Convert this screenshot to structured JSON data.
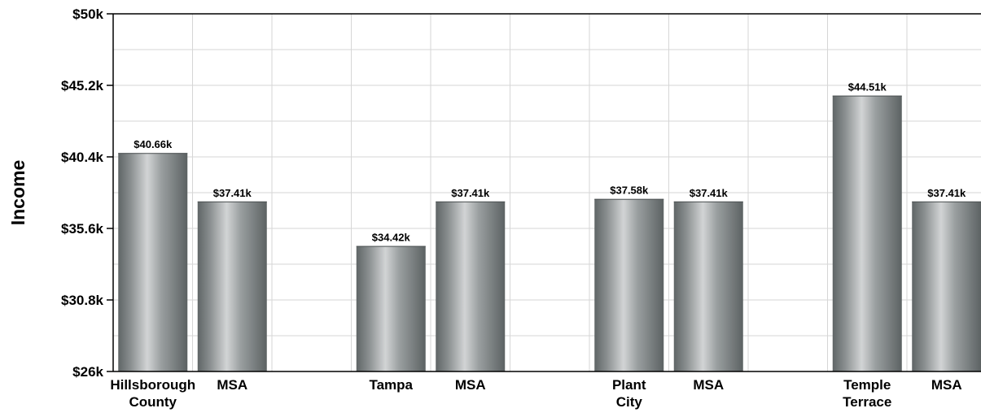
{
  "chart_data": {
    "type": "bar",
    "ylabel": "Income",
    "ylim": [
      26000,
      50000
    ],
    "yticks": [
      {
        "value": 50000,
        "label": "$50k"
      },
      {
        "value": 45200,
        "label": "$45.2k"
      },
      {
        "value": 40400,
        "label": "$40.4k"
      },
      {
        "value": 35600,
        "label": "$35.6k"
      },
      {
        "value": 30800,
        "label": "$30.8k"
      },
      {
        "value": 26000,
        "label": "$26k"
      }
    ],
    "grid": true,
    "groups": [
      {
        "bars": [
          {
            "category": [
              "Hillsborough",
              "County"
            ],
            "value": 40660,
            "label": "$40.66k"
          },
          {
            "category": [
              "MSA"
            ],
            "value": 37410,
            "label": "$37.41k"
          }
        ]
      },
      {
        "bars": [
          {
            "category": [
              "Tampa"
            ],
            "value": 34420,
            "label": "$34.42k"
          },
          {
            "category": [
              "MSA"
            ],
            "value": 37410,
            "label": "$37.41k"
          }
        ]
      },
      {
        "bars": [
          {
            "category": [
              "Plant",
              "City"
            ],
            "value": 37580,
            "label": "$37.58k"
          },
          {
            "category": [
              "MSA"
            ],
            "value": 37410,
            "label": "$37.41k"
          }
        ]
      },
      {
        "bars": [
          {
            "category": [
              "Temple",
              "Terrace"
            ],
            "value": 44510,
            "label": "$44.51k"
          },
          {
            "category": [
              "MSA"
            ],
            "value": 37410,
            "label": "$37.41k"
          }
        ]
      }
    ]
  }
}
